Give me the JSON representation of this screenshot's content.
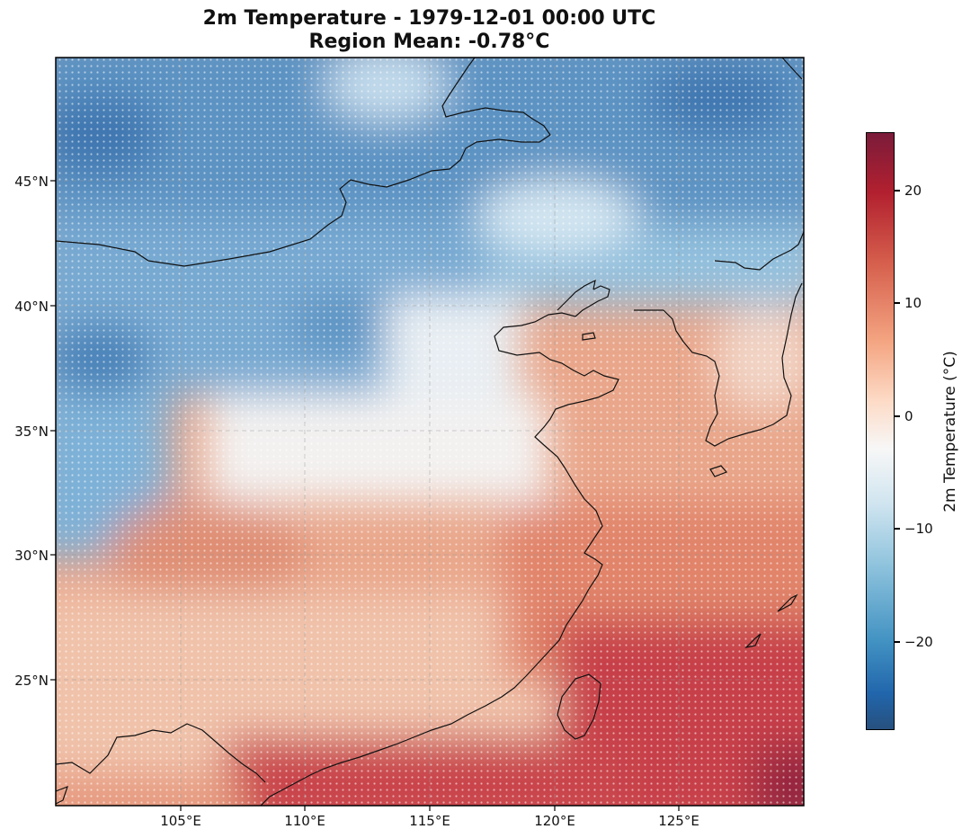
{
  "title_line1": "2m Temperature - 1979-12-01 00:00 UTC",
  "title_line2": "Region Mean: -0.78°C",
  "lat_labels": [
    "45°N",
    "40°N",
    "35°N",
    "30°N",
    "25°N"
  ],
  "lon_labels": [
    "105°E",
    "110°E",
    "115°E",
    "120°E",
    "125°E"
  ],
  "colorbar": {
    "label": "2m Temperature (°C)",
    "ticks": [
      "20",
      "10",
      "0",
      "−10",
      "−20"
    ],
    "min": -28,
    "max": 25,
    "colormap": "RdBu_r"
  },
  "map_extent": {
    "lon_min": 100,
    "lon_max": 130,
    "lat_min": 20,
    "lat_max": 50
  },
  "colors": {
    "cold": "#2166ac",
    "neutral": "#f7f7f7",
    "warm": "#b2182b"
  }
}
